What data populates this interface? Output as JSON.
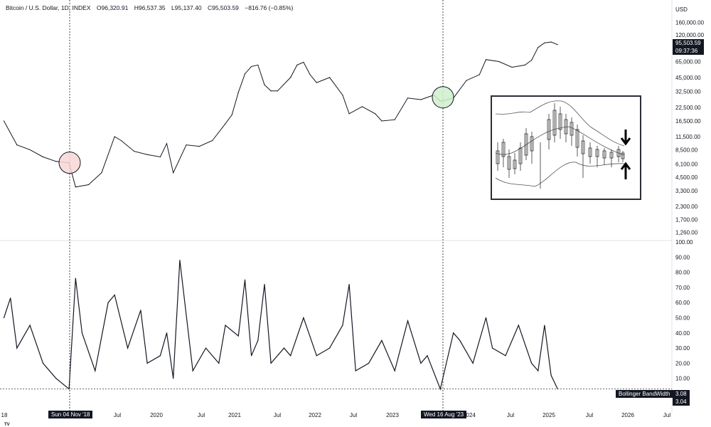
{
  "header": {
    "symbol": "Bitcoin / U.S. Dollar, 1D, INDEX",
    "open": "O96,320.91",
    "high": "H96,537.35",
    "low": "L95,137.40",
    "close": "C95,503.59",
    "change": "−816.76 (−0.85%)"
  },
  "currency": "USD",
  "price_badge": {
    "price": "95,503.59",
    "time": "09:37:36"
  },
  "bw_badge": {
    "label": "Bollinger BandWidth",
    "value1": "3.08",
    "value2": "3.04"
  },
  "markers": [
    {
      "date_label": "Sun 04 Nov '18",
      "color": "#f8d7d7"
    },
    {
      "date_label": "Wed 16 Aug '23",
      "color": "#cfeecb"
    }
  ],
  "chart_data": [
    {
      "type": "line",
      "scale": "log",
      "x_range": [
        "2018-01",
        "2026-07"
      ],
      "ylim": [
        1100,
        200000
      ],
      "yticks": [
        "160,000.00",
        "120,000.00",
        "65,000.00",
        "45,000.00",
        "32,500.00",
        "22,500.00",
        "16,500.00",
        "11,500.00",
        "8,500.00",
        "6,100.00",
        "4,500.00",
        "3,300.00",
        "2,300.00",
        "1,700.00",
        "1,260.00"
      ],
      "x_ticks": [
        "18",
        "Jul",
        "2020",
        "Jul",
        "2021",
        "Jul",
        "2022",
        "Jul",
        "2023",
        "2024",
        "Jul",
        "2025",
        "Jul",
        "2026",
        "Jul"
      ],
      "x": [
        "2018-01",
        "2018-03",
        "2018-05",
        "2018-07",
        "2018-09",
        "2018-11",
        "2018-12",
        "2019-02",
        "2019-04",
        "2019-06",
        "2019-07",
        "2019-09",
        "2019-11",
        "2020-01",
        "2020-02",
        "2020-03",
        "2020-05",
        "2020-07",
        "2020-09",
        "2020-11",
        "2020-12",
        "2021-01",
        "2021-02",
        "2021-03",
        "2021-04",
        "2021-05",
        "2021-06",
        "2021-07",
        "2021-09",
        "2021-10",
        "2021-11",
        "2021-12",
        "2022-01",
        "2022-03",
        "2022-05",
        "2022-06",
        "2022-08",
        "2022-10",
        "2022-11",
        "2023-01",
        "2023-03",
        "2023-05",
        "2023-07",
        "2023-08",
        "2023-10",
        "2023-12",
        "2024-02",
        "2024-03",
        "2024-05",
        "2024-07",
        "2024-09",
        "2024-10",
        "2024-11",
        "2024-12",
        "2025-01",
        "2025-02"
      ],
      "y": [
        16500,
        9500,
        8500,
        7200,
        6500,
        6300,
        3600,
        3800,
        5000,
        11500,
        10500,
        8200,
        7600,
        7200,
        9800,
        5000,
        9500,
        9200,
        10500,
        15500,
        19000,
        32000,
        49000,
        58000,
        60000,
        38000,
        33000,
        33000,
        45000,
        60000,
        64000,
        48000,
        40000,
        45000,
        30000,
        19500,
        23000,
        19500,
        16500,
        17000,
        28000,
        27000,
        30000,
        26000,
        28000,
        42000,
        48000,
        68000,
        65000,
        57000,
        60000,
        67000,
        90000,
        100000,
        102000,
        96000
      ]
    },
    {
      "type": "line",
      "title": "Bollinger BandWidth",
      "x_range": [
        "2018-01",
        "2026-07"
      ],
      "ylim": [
        0,
        100
      ],
      "yticks": [
        "100.00",
        "90.00",
        "80.00",
        "70.00",
        "60.00",
        "50.00",
        "40.00",
        "30.00",
        "20.00",
        "10.00"
      ],
      "x": [
        "2018-01",
        "2018-02",
        "2018-03",
        "2018-05",
        "2018-07",
        "2018-09",
        "2018-11",
        "2018-12",
        "2019-01",
        "2019-03",
        "2019-05",
        "2019-06",
        "2019-08",
        "2019-10",
        "2019-11",
        "2020-01",
        "2020-02",
        "2020-03",
        "2020-04",
        "2020-06",
        "2020-08",
        "2020-10",
        "2020-11",
        "2021-01",
        "2021-02",
        "2021-03",
        "2021-04",
        "2021-05",
        "2021-06",
        "2021-08",
        "2021-09",
        "2021-11",
        "2022-01",
        "2022-03",
        "2022-05",
        "2022-06",
        "2022-07",
        "2022-09",
        "2022-11",
        "2023-01",
        "2023-03",
        "2023-05",
        "2023-06",
        "2023-08",
        "2023-10",
        "2023-11",
        "2024-01",
        "2024-03",
        "2024-04",
        "2024-06",
        "2024-08",
        "2024-10",
        "2024-11",
        "2024-12",
        "2025-01",
        "2025-02"
      ],
      "y": [
        50,
        63,
        30,
        45,
        20,
        10,
        3,
        76,
        40,
        15,
        60,
        65,
        30,
        55,
        20,
        25,
        40,
        10,
        88,
        15,
        30,
        20,
        45,
        38,
        75,
        25,
        35,
        72,
        20,
        30,
        25,
        50,
        25,
        30,
        45,
        72,
        15,
        20,
        35,
        15,
        48,
        20,
        25,
        3,
        40,
        35,
        20,
        50,
        30,
        25,
        45,
        20,
        15,
        45,
        12,
        3.08
      ]
    }
  ]
}
